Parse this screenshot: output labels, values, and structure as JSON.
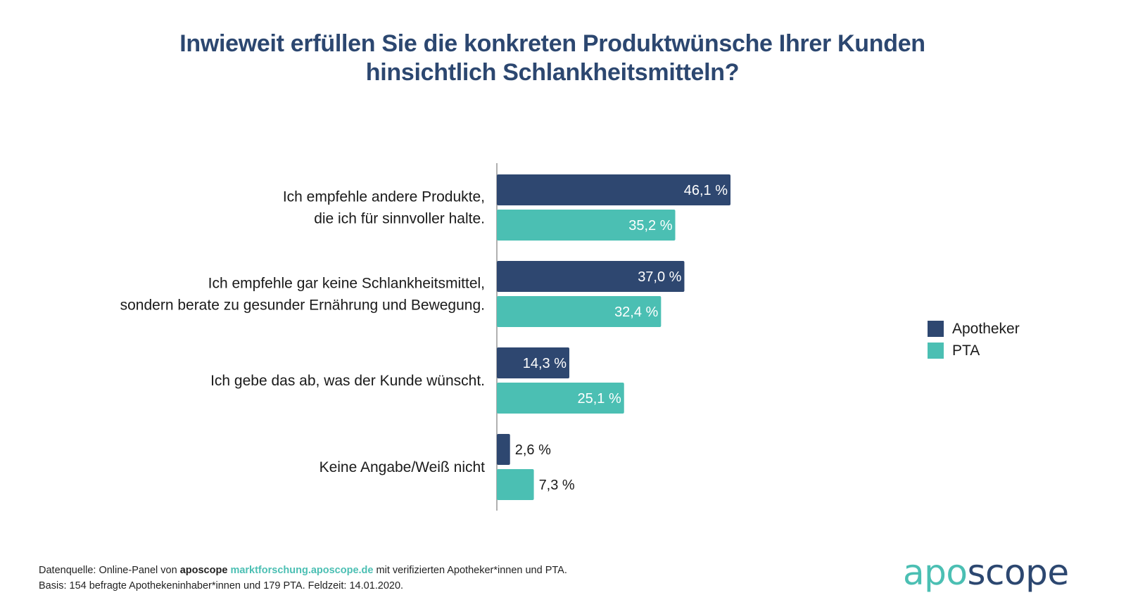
{
  "header": {
    "title_line1": "Inwieweit erfüllen Sie die konkreten Produktwünsche Ihrer Kunden",
    "title_line2": "hinsichtlich Schlankheitsmitteln?"
  },
  "colors": {
    "apotheker": "#2e4770",
    "pta": "#4bbfb3",
    "title": "#2c4770",
    "axis": "#b0b0b0"
  },
  "chart_data": {
    "type": "bar",
    "orientation": "horizontal",
    "title": "Inwieweit erfüllen Sie die konkreten Produktwünsche Ihrer Kunden hinsichtlich Schlankheitsmitteln?",
    "xlabel": "",
    "ylabel": "",
    "unit": "%",
    "grid": false,
    "legend_position": "right",
    "categories": [
      [
        "Ich empfehle andere Produkte,",
        "die ich für sinnvoller halte."
      ],
      [
        "Ich empfehle gar keine Schlankheitsmittel,",
        "sondern berate zu gesunder Ernährung und Bewegung."
      ],
      [
        "Ich gebe das ab, was der Kunde wünscht."
      ],
      [
        "Keine Angabe/Weiß nicht"
      ]
    ],
    "series": [
      {
        "name": "Apotheker",
        "values": [
          46.1,
          37.0,
          14.3,
          2.6
        ],
        "labels": [
          "46,1 %",
          "37,0 %",
          "14,3 %",
          "2,6 %"
        ]
      },
      {
        "name": "PTA",
        "values": [
          35.2,
          32.4,
          25.1,
          7.3
        ],
        "labels": [
          "35,2 %",
          "32,4 %",
          "25,1 %",
          "7,3 %"
        ]
      }
    ]
  },
  "legend": {
    "items": [
      {
        "label": "Apotheker"
      },
      {
        "label": "PTA"
      }
    ]
  },
  "footer": {
    "line1_prefix": "Datenquelle: Online-Panel von ",
    "line1_brand": "aposcope",
    "line1_link": "marktforschung.aposcope.de",
    "line1_suffix": " mit verifizierten Apotheker*innen und PTA.",
    "line2": "Basis: 154 befragte Apothekeninhaber*innen und 179 PTA. Feldzeit: 14.01.2020."
  },
  "logo": {
    "part1": "apo",
    "part2": "scope"
  }
}
